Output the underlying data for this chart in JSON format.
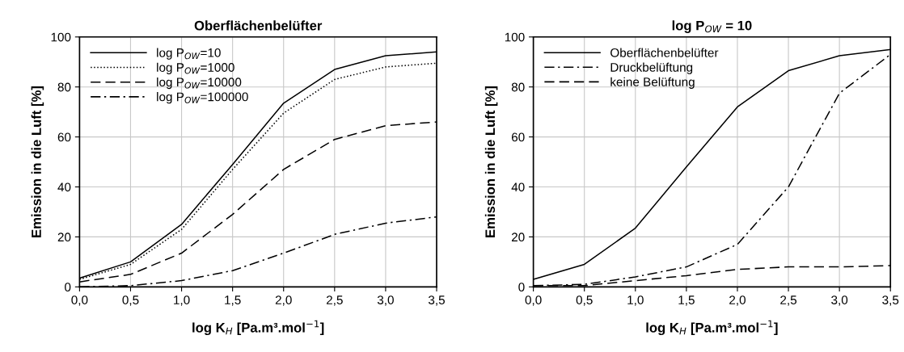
{
  "chart_data": [
    {
      "type": "line",
      "title": "Oberflächenbelüfter",
      "xlabel": "log K$_{H}$ [Pa.m³.mol$^{−1}$]",
      "ylabel": "Emission in die Luft [%]",
      "x": [
        0,
        0.5,
        1,
        1.5,
        2,
        2.5,
        3,
        3.5
      ],
      "series": [
        {
          "name": "log P$_{OW}$=10",
          "color": "#000000",
          "line_style": "solid",
          "values": [
            3.5,
            10,
            25,
            49,
            73.5,
            87,
            92.5,
            94
          ]
        },
        {
          "name": "log P$_{OW}$=1000",
          "color": "#000000",
          "line_style": "dotted",
          "values": [
            3,
            9,
            23,
            47,
            69.5,
            83,
            88,
            89.5
          ]
        },
        {
          "name": "log P$_{OW}$=10000",
          "color": "#000000",
          "line_style": "dashed",
          "values": [
            2,
            5,
            13.5,
            29,
            47,
            59,
            64.5,
            66
          ]
        },
        {
          "name": "log P$_{OW}$=100000",
          "color": "#000000",
          "line_style": "dashdot",
          "values": [
            0,
            0.5,
            2.5,
            6.5,
            13.5,
            21,
            25.5,
            28
          ]
        }
      ],
      "xlim": [
        0,
        3.5
      ],
      "ylim": [
        0,
        100
      ],
      "xticks": [
        {
          "value": 0,
          "label": "0,0"
        },
        {
          "value": 0.5,
          "label": "0,5"
        },
        {
          "value": 1,
          "label": "1,0"
        },
        {
          "value": 1.5,
          "label": "1,5"
        },
        {
          "value": 2,
          "label": "2,0"
        },
        {
          "value": 2.5,
          "label": "2,5"
        },
        {
          "value": 3,
          "label": "3,0"
        },
        {
          "value": 3.5,
          "label": "3,5"
        }
      ],
      "yticks": [
        0,
        20,
        40,
        60,
        80,
        100
      ],
      "grid": true,
      "legend": "top left",
      "marker": "none"
    },
    {
      "type": "line",
      "title": "log P$_{OW}$ = 10",
      "xlabel": "log K$_{H}$ [Pa.m³.mol$^{−1}$]",
      "ylabel": "Emission in die Luft [%]",
      "x": [
        0,
        0.5,
        1,
        1.5,
        2,
        2.5,
        3,
        3.5
      ],
      "series": [
        {
          "name": "Oberflächenbelüfter",
          "color": "#000000",
          "line_style": "solid",
          "values": [
            3,
            9,
            23.5,
            48,
            72,
            86.5,
            92.5,
            95
          ]
        },
        {
          "name": "Druckbelüftung",
          "color": "#000000",
          "line_style": "dashdot",
          "values": [
            0.5,
            1,
            4,
            8,
            17,
            40,
            77.5,
            93
          ]
        },
        {
          "name": "keine Belüftung",
          "color": "#000000",
          "line_style": "dashed",
          "values": [
            0.5,
            0.5,
            2.5,
            4.5,
            7,
            8,
            8,
            8.5
          ]
        }
      ],
      "xlim": [
        0,
        3.5
      ],
      "ylim": [
        0,
        100
      ],
      "xticks": [
        {
          "value": 0,
          "label": "0,0"
        },
        {
          "value": 0.5,
          "label": "0,5"
        },
        {
          "value": 1,
          "label": "1,0"
        },
        {
          "value": 1.5,
          "label": "1,5"
        },
        {
          "value": 2,
          "label": "2,0"
        },
        {
          "value": 2.5,
          "label": "2,5"
        },
        {
          "value": 3,
          "label": "3,0"
        },
        {
          "value": 3.5,
          "label": "3,5"
        }
      ],
      "yticks": [
        0,
        20,
        40,
        60,
        80,
        100
      ],
      "grid": true,
      "legend": "top left",
      "marker": "none"
    }
  ]
}
